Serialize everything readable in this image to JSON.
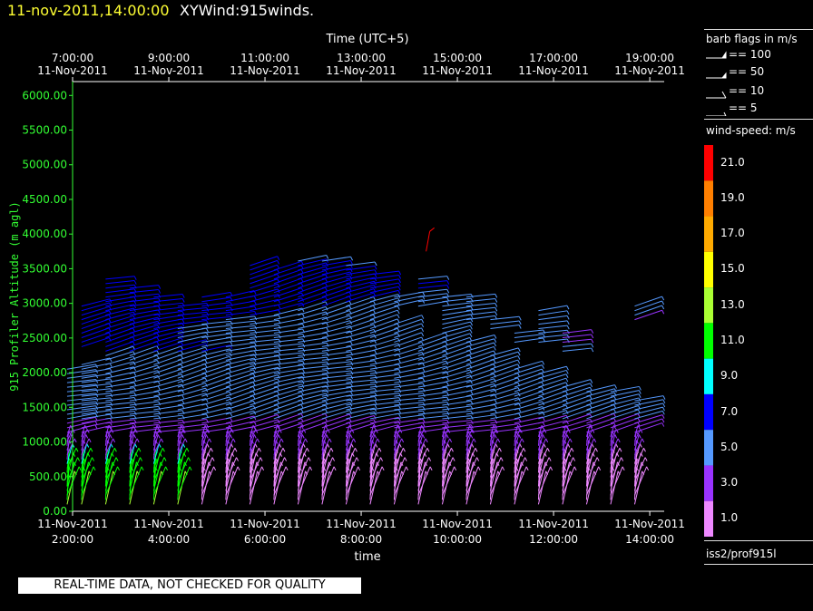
{
  "header": {
    "datetime": "11-nov-2011,14:00:00",
    "product": "XYWind:915winds."
  },
  "legend": {
    "barb_title": "barb flags in m/s",
    "barbs": [
      {
        "label": "== 100"
      },
      {
        "label": "== 50"
      },
      {
        "label": "== 10"
      },
      {
        "label": "== 5"
      }
    ],
    "speed_title": "wind-speed: m/s",
    "speed_scale": [
      {
        "label": "21.0",
        "color": "#ff0000"
      },
      {
        "label": "19.0",
        "color": "#ff7f00"
      },
      {
        "label": "17.0",
        "color": "#ffaa00"
      },
      {
        "label": "15.0",
        "color": "#ffff00"
      },
      {
        "label": "13.0",
        "color": "#aaff33"
      },
      {
        "label": "11.0",
        "color": "#00ff00"
      },
      {
        "label": "9.0",
        "color": "#00ffff"
      },
      {
        "label": "7.0",
        "color": "#0000ff"
      },
      {
        "label": "5.0",
        "color": "#5599ff"
      },
      {
        "label": "3.0",
        "color": "#9933ff"
      },
      {
        "label": "1.0",
        "color": "#ee88ff"
      }
    ],
    "source": "iss2/prof915l"
  },
  "footer": {
    "warning": "REAL-TIME DATA, NOT CHECKED FOR QUALITY"
  },
  "chart_data": {
    "type": "scatter",
    "title": "",
    "ylabel": "915 Profiler Altitude (m agl)",
    "xlabel_bottom": "time",
    "xlabel_top": "Time (UTC+5)",
    "ylim": [
      0,
      6200
    ],
    "yticks": [
      "0.00",
      "500.00",
      "1000.00",
      "1500.00",
      "2000.00",
      "2500.00",
      "3000.00",
      "3500.00",
      "4000.00",
      "4500.00",
      "5000.00",
      "5500.00",
      "6000.00"
    ],
    "yvals": [
      0,
      500,
      1000,
      1500,
      2000,
      2500,
      3000,
      3500,
      4000,
      4500,
      5000,
      5500,
      6000
    ],
    "xlim_hours": [
      2.0,
      14.3
    ],
    "xticks_bottom": [
      {
        "time": "2:00:00",
        "date": "11-Nov-2011",
        "hour": 2
      },
      {
        "time": "4:00:00",
        "date": "11-Nov-2011",
        "hour": 4
      },
      {
        "time": "6:00:00",
        "date": "11-Nov-2011",
        "hour": 6
      },
      {
        "time": "8:00:00",
        "date": "11-Nov-2011",
        "hour": 8
      },
      {
        "time": "10:00:00",
        "date": "11-Nov-2011",
        "hour": 10
      },
      {
        "time": "12:00:00",
        "date": "11-Nov-2011",
        "hour": 12
      },
      {
        "time": "14:00:00",
        "date": "11-Nov-2011",
        "hour": 14
      }
    ],
    "xticks_top": [
      {
        "time": "7:00:00",
        "date": "11-Nov-2011",
        "hour": 2
      },
      {
        "time": "9:00:00",
        "date": "11-Nov-2011",
        "hour": 4
      },
      {
        "time": "11:00:00",
        "date": "11-Nov-2011",
        "hour": 6
      },
      {
        "time": "13:00:00",
        "date": "11-Nov-2011",
        "hour": 8
      },
      {
        "time": "15:00:00",
        "date": "11-Nov-2011",
        "hour": 10
      },
      {
        "time": "17:00:00",
        "date": "11-Nov-2011",
        "hour": 12
      },
      {
        "time": "19:00:00",
        "date": "11-Nov-2011",
        "hour": 14
      }
    ],
    "profiles": [
      {
        "t": 2.15,
        "top": 2500,
        "gaps": [
          [
            2100,
            2450
          ]
        ]
      },
      {
        "t": 2.45,
        "top": 3000,
        "gaps": [
          [
            2150,
            2350
          ]
        ]
      },
      {
        "t": 2.95,
        "top": 3350,
        "gaps": []
      },
      {
        "t": 3.45,
        "top": 3250,
        "gaps": []
      },
      {
        "t": 3.95,
        "top": 3100,
        "gaps": []
      },
      {
        "t": 4.45,
        "top": 3000,
        "gaps": []
      },
      {
        "t": 4.95,
        "top": 3100,
        "gaps": []
      },
      {
        "t": 5.45,
        "top": 3150,
        "gaps": []
      },
      {
        "t": 5.95,
        "top": 3550,
        "gaps": []
      },
      {
        "t": 6.45,
        "top": 3500,
        "gaps": []
      },
      {
        "t": 6.95,
        "top": 3650,
        "gaps": []
      },
      {
        "t": 7.45,
        "top": 3650,
        "gaps": []
      },
      {
        "t": 7.95,
        "top": 3550,
        "gaps": []
      },
      {
        "t": 8.45,
        "top": 3450,
        "gaps": []
      },
      {
        "t": 8.95,
        "top": 3100,
        "gaps": [
          [
            2700,
            2900
          ]
        ]
      },
      {
        "t": 9.45,
        "top": 3350,
        "gaps": [
          [
            2500,
            2900
          ]
        ]
      },
      {
        "t": 9.95,
        "top": 3100,
        "gaps": []
      },
      {
        "t": 10.45,
        "top": 3150,
        "gaps": [
          [
            2500,
            2750
          ]
        ]
      },
      {
        "t": 10.95,
        "top": 2800,
        "gaps": [
          [
            2300,
            2600
          ]
        ]
      },
      {
        "t": 11.45,
        "top": 2600,
        "gaps": [
          [
            2100,
            2400
          ]
        ]
      },
      {
        "t": 11.95,
        "top": 2900,
        "gaps": [
          [
            2000,
            2400
          ]
        ]
      },
      {
        "t": 12.45,
        "top": 2600,
        "gaps": [
          [
            1800,
            2300
          ]
        ]
      },
      {
        "t": 12.95,
        "top": 1750,
        "gaps": []
      },
      {
        "t": 13.45,
        "top": 1750,
        "gaps": []
      },
      {
        "t": 13.95,
        "top": 3000,
        "gaps": [
          [
            1650,
            2750
          ]
        ]
      }
    ],
    "isolated": [
      {
        "t": 9.35,
        "alt": 3750,
        "speed": 21
      }
    ]
  }
}
